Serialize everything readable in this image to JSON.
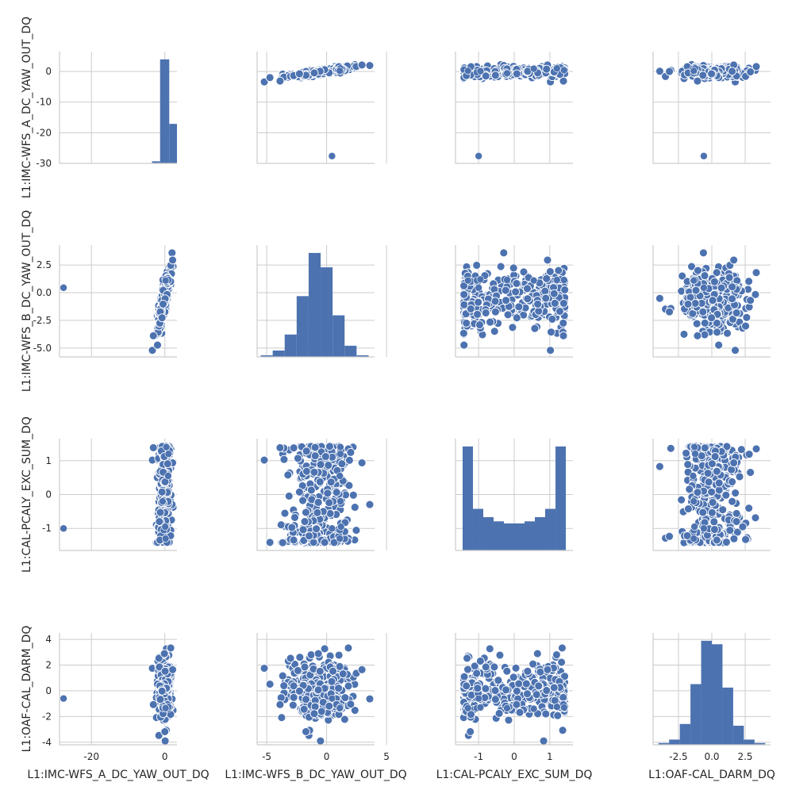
{
  "chart_data": {
    "type": "scatter",
    "variables": [
      {
        "label": "L1:IMC-WFS_A_DC_YAW_OUT_DQ",
        "lim": [
          -28.7,
          3.3
        ],
        "ticks": [
          -20,
          0
        ],
        "ylim": [
          -30,
          6.5
        ],
        "yticks": [
          -30,
          -20,
          -10,
          0
        ]
      },
      {
        "label": "L1:IMC-WFS_B_DC_YAW_OUT_DQ",
        "lim": [
          -5.8,
          4.0
        ],
        "ticks": [
          -5,
          0,
          5
        ],
        "ylim": [
          -5.8,
          4.3
        ],
        "yticks": [
          -5.0,
          -2.5,
          0.0,
          2.5
        ]
      },
      {
        "label": "L1:CAL-PCALY_EXC_SUM_DQ",
        "lim": [
          -1.65,
          1.65
        ],
        "ticks": [
          -1,
          0,
          1
        ],
        "ylim": [
          -1.65,
          1.65
        ],
        "yticks": [
          -1,
          0,
          1
        ]
      },
      {
        "label": "L1:OAF-CAL_DARM_DQ",
        "lim": [
          -4.4,
          4.4
        ],
        "ticks": [
          -2.5,
          0.0,
          2.5
        ],
        "ylim": [
          -4.2,
          4.5
        ],
        "yticks": [
          -4,
          -2,
          0,
          2,
          4
        ]
      }
    ],
    "outlier": [
      -27.6,
      0.45,
      -1.0,
      -0.6
    ],
    "highlight_points": [
      [
        -0.3,
        1.1,
        -1.05,
        -1.35
      ],
      [
        0.4,
        1.15,
        1.4,
        -1.3
      ],
      [
        0.9,
        1.1,
        0.55,
        -1.4
      ],
      [
        -0.6,
        1.15,
        -0.2,
        -1.35
      ],
      [
        0.1,
        1.2,
        -0.95,
        -1.3
      ],
      [
        1.0,
        1.15,
        1.2,
        -1.25
      ],
      [
        0.2,
        1.1,
        -1.3,
        -1.35
      ]
    ],
    "histograms": [
      {
        "bins": [
          -3.5,
          -1.3,
          1.2,
          3.3
        ],
        "counts": [
          2,
          100,
          38
        ]
      },
      {
        "bins": [
          -5.5,
          -4.5,
          -3.5,
          -2.5,
          -1.5,
          -0.5,
          0.5,
          1.5,
          2.5,
          3.5
        ],
        "counts": [
          1,
          4,
          14,
          38,
          65,
          56,
          26,
          7,
          1
        ]
      },
      {
        "bins": [
          -1.45,
          -1.16,
          -0.87,
          -0.58,
          -0.29,
          0.0,
          0.29,
          0.58,
          0.87,
          1.16,
          1.45
        ],
        "counts": [
          100,
          40,
          32,
          28,
          26,
          26,
          28,
          32,
          40,
          100
        ]
      },
      {
        "bins": [
          -4.0,
          -3.2,
          -2.4,
          -1.6,
          -0.8,
          0.0,
          0.8,
          1.6,
          2.4,
          3.2,
          4.0
        ],
        "counts": [
          1,
          3,
          12,
          35,
          60,
          58,
          33,
          11,
          3,
          1
        ]
      }
    ],
    "grid": true,
    "colors": {
      "marker": "#4c72b0",
      "edge": "#ffffff",
      "grid": "#cccccc",
      "axis": "#cccccc"
    }
  }
}
